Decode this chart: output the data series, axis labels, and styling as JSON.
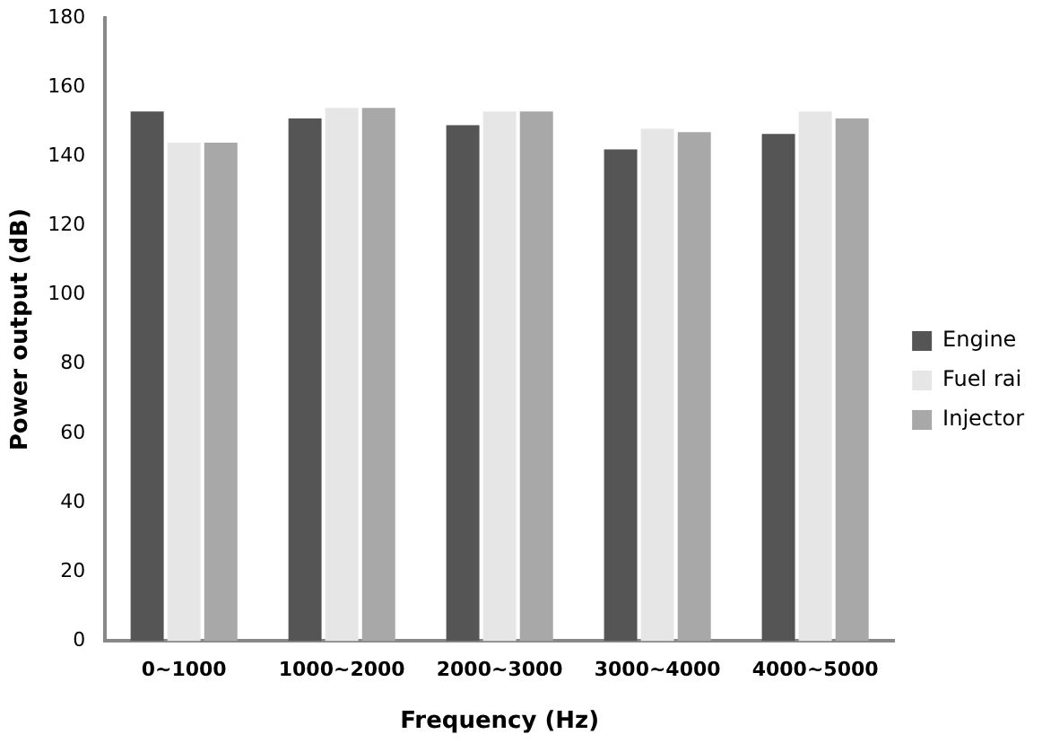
{
  "chart_data": {
    "type": "bar",
    "xlabel": "Frequency (Hz)",
    "ylabel": "Power output (dB)",
    "categories": [
      "0~1000",
      "1000~2000",
      "2000~3000",
      "3000~4000",
      "4000~5000"
    ],
    "series": [
      {
        "name": "Engine",
        "color": "#555555",
        "values": [
          153,
          151,
          149,
          142,
          146.5
        ]
      },
      {
        "name": "Fuel rai",
        "color": "#e6e6e6",
        "values": [
          144,
          154,
          153,
          148,
          153
        ]
      },
      {
        "name": "Injector",
        "color": "#a8a8a8",
        "values": [
          144,
          154,
          153,
          147,
          151
        ]
      }
    ],
    "ylim": [
      0,
      180
    ],
    "yticks": [
      0,
      20,
      40,
      60,
      80,
      100,
      120,
      140,
      160,
      180
    ],
    "grid": false,
    "legend": "right"
  }
}
